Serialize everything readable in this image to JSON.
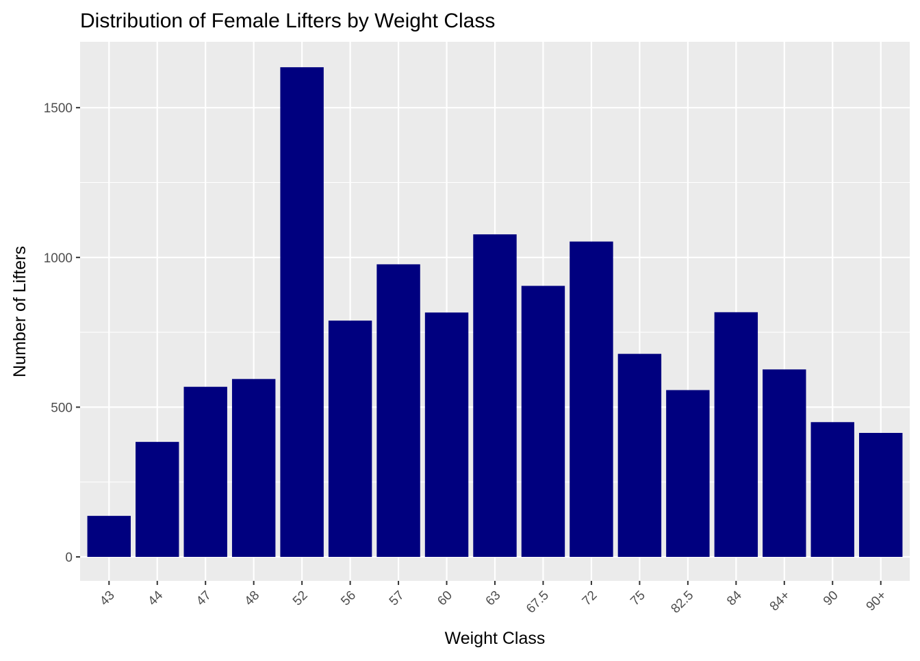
{
  "chart_data": {
    "type": "bar",
    "title": "Distribution of Female Lifters by Weight Class",
    "xlabel": "Weight Class",
    "ylabel": "Number of Lifters",
    "categories": [
      "43",
      "44",
      "47",
      "48",
      "52",
      "56",
      "57",
      "60",
      "63",
      "67.5",
      "72",
      "75",
      "82.5",
      "84",
      "84+",
      "90",
      "90+"
    ],
    "values": [
      137,
      384,
      568,
      594,
      1635,
      789,
      977,
      816,
      1077,
      905,
      1053,
      678,
      557,
      817,
      626,
      450,
      414
    ],
    "ylim": [
      -80,
      1720
    ],
    "yticks": [
      0,
      500,
      1000,
      1500
    ],
    "ytick_labels": [
      "0",
      "500",
      "1000",
      "1500"
    ],
    "grid": true,
    "legend": "none",
    "colors": {
      "bar": "#00007F",
      "panel": "#EBEBEB",
      "grid": "#FFFFFF",
      "tick_label": "#4D4D4D",
      "tick_mark": "#333333"
    }
  }
}
